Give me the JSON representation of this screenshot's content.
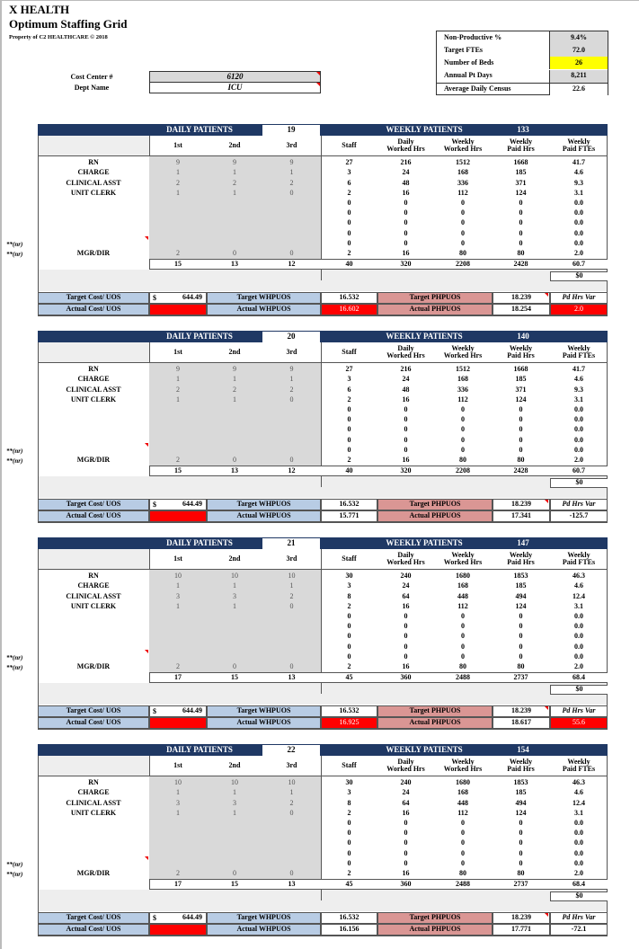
{
  "header": {
    "org": "X HEALTH",
    "title": "Optimum Staffing Grid",
    "property": "Property of C2 HEALTHCARE © 2018",
    "cost_center_label": "Cost Center #",
    "cost_center": "6120",
    "dept_name_label": "Dept Name",
    "dept_name": "ICU"
  },
  "summary": [
    {
      "label": "Non-Productive %",
      "value": "9.4%"
    },
    {
      "label": "Target FTEs",
      "value": "72.0"
    },
    {
      "label": "Number of Beds",
      "value": "26",
      "highlight": "#ffff00"
    },
    {
      "label": "Annual Pt Days",
      "value": "8,211"
    },
    {
      "label": "Average Daily Census",
      "value": "22.6"
    }
  ],
  "labels": {
    "daily_patients": "DAILY PATIENTS",
    "weekly_patients": "WEEKLY PATIENTS",
    "shifts": [
      "1st",
      "2nd",
      "3rd"
    ],
    "columns": [
      "Staff",
      "Daily\nWorked Hrs",
      "Weekly\nWorked Hrs",
      "Weekly\nPaid Hrs",
      "Weekly\nPaid FTEs"
    ],
    "roles": [
      "RN",
      "CHARGE",
      "CLINICAL ASST",
      "UNIT CLERK",
      "",
      "",
      "",
      "",
      "",
      "MGR/DIR"
    ],
    "nr_marker": "**(nr)",
    "target_cost": "Target Cost/ UOS",
    "actual_cost": "Actual Cost/ UOS",
    "target_whpuos": "Target WHPUOS",
    "actual_whpuos": "Actual WHPUOS",
    "target_phpuos": "Target PHPUOS",
    "actual_phpuos": "Actual PHPUOS",
    "pd_hrs_var": "Pd Hrs Var",
    "currency": "$"
  },
  "colors": {
    "navy": "#1f3864",
    "blue_label": "#b8cce4",
    "pink_label": "#da9694",
    "alert": "#ff0000",
    "shift_gray": "#d9d9d9",
    "highlight": "#ffff00"
  },
  "blocks": [
    {
      "daily_patients": "19",
      "weekly_patients": "133",
      "shifts": [
        [
          "9",
          "9",
          "9"
        ],
        [
          "1",
          "1",
          "1"
        ],
        [
          "2",
          "2",
          "2"
        ],
        [
          "1",
          "1",
          "0"
        ],
        [
          "",
          "",
          ""
        ],
        [
          "",
          "",
          ""
        ],
        [
          "",
          "",
          ""
        ],
        [
          "",
          "",
          ""
        ],
        [
          "",
          "",
          ""
        ],
        [
          "2",
          "0",
          "0"
        ]
      ],
      "rows": [
        [
          "27",
          "216",
          "1512",
          "1668",
          "41.7"
        ],
        [
          "3",
          "24",
          "168",
          "185",
          "4.6"
        ],
        [
          "6",
          "48",
          "336",
          "371",
          "9.3"
        ],
        [
          "2",
          "16",
          "112",
          "124",
          "3.1"
        ],
        [
          "0",
          "0",
          "0",
          "0",
          "0.0"
        ],
        [
          "0",
          "0",
          "0",
          "0",
          "0.0"
        ],
        [
          "0",
          "0",
          "0",
          "0",
          "0.0"
        ],
        [
          "0",
          "0",
          "0",
          "0",
          "0.0"
        ],
        [
          "0",
          "0",
          "0",
          "0",
          "0.0"
        ],
        [
          "2",
          "16",
          "80",
          "80",
          "2.0"
        ]
      ],
      "totals": [
        "15",
        "13",
        "12",
        "40",
        "320",
        "2208",
        "2428",
        "60.7"
      ],
      "dollars": "$0",
      "target_cost": "644.49",
      "target_whpuos": "16.532",
      "actual_whpuos": "16.602",
      "actual_whpuos_alert": true,
      "target_phpuos": "18.239",
      "actual_phpuos": "18.254",
      "pd_hrs_var": "2.0",
      "pd_hrs_var_alert": true
    },
    {
      "daily_patients": "20",
      "weekly_patients": "140",
      "shifts": [
        [
          "9",
          "9",
          "9"
        ],
        [
          "1",
          "1",
          "1"
        ],
        [
          "2",
          "2",
          "2"
        ],
        [
          "1",
          "1",
          "0"
        ],
        [
          "",
          "",
          ""
        ],
        [
          "",
          "",
          ""
        ],
        [
          "",
          "",
          ""
        ],
        [
          "",
          "",
          ""
        ],
        [
          "",
          "",
          ""
        ],
        [
          "2",
          "0",
          "0"
        ]
      ],
      "rows": [
        [
          "27",
          "216",
          "1512",
          "1668",
          "41.7"
        ],
        [
          "3",
          "24",
          "168",
          "185",
          "4.6"
        ],
        [
          "6",
          "48",
          "336",
          "371",
          "9.3"
        ],
        [
          "2",
          "16",
          "112",
          "124",
          "3.1"
        ],
        [
          "0",
          "0",
          "0",
          "0",
          "0.0"
        ],
        [
          "0",
          "0",
          "0",
          "0",
          "0.0"
        ],
        [
          "0",
          "0",
          "0",
          "0",
          "0.0"
        ],
        [
          "0",
          "0",
          "0",
          "0",
          "0.0"
        ],
        [
          "0",
          "0",
          "0",
          "0",
          "0.0"
        ],
        [
          "2",
          "16",
          "80",
          "80",
          "2.0"
        ]
      ],
      "totals": [
        "15",
        "13",
        "12",
        "40",
        "320",
        "2208",
        "2428",
        "60.7"
      ],
      "dollars": "$0",
      "target_cost": "644.49",
      "target_whpuos": "16.532",
      "actual_whpuos": "15.771",
      "actual_whpuos_alert": false,
      "target_phpuos": "18.239",
      "actual_phpuos": "17.341",
      "pd_hrs_var": "-125.7",
      "pd_hrs_var_alert": false
    },
    {
      "daily_patients": "21",
      "weekly_patients": "147",
      "shifts": [
        [
          "10",
          "10",
          "10"
        ],
        [
          "1",
          "1",
          "1"
        ],
        [
          "3",
          "3",
          "2"
        ],
        [
          "1",
          "1",
          "0"
        ],
        [
          "",
          "",
          ""
        ],
        [
          "",
          "",
          ""
        ],
        [
          "",
          "",
          ""
        ],
        [
          "",
          "",
          ""
        ],
        [
          "",
          "",
          ""
        ],
        [
          "2",
          "0",
          "0"
        ]
      ],
      "rows": [
        [
          "30",
          "240",
          "1680",
          "1853",
          "46.3"
        ],
        [
          "3",
          "24",
          "168",
          "185",
          "4.6"
        ],
        [
          "8",
          "64",
          "448",
          "494",
          "12.4"
        ],
        [
          "2",
          "16",
          "112",
          "124",
          "3.1"
        ],
        [
          "0",
          "0",
          "0",
          "0",
          "0.0"
        ],
        [
          "0",
          "0",
          "0",
          "0",
          "0.0"
        ],
        [
          "0",
          "0",
          "0",
          "0",
          "0.0"
        ],
        [
          "0",
          "0",
          "0",
          "0",
          "0.0"
        ],
        [
          "0",
          "0",
          "0",
          "0",
          "0.0"
        ],
        [
          "2",
          "16",
          "80",
          "80",
          "2.0"
        ]
      ],
      "totals": [
        "17",
        "15",
        "13",
        "45",
        "360",
        "2488",
        "2737",
        "68.4"
      ],
      "dollars": "$0",
      "target_cost": "644.49",
      "target_whpuos": "16.532",
      "actual_whpuos": "16.925",
      "actual_whpuos_alert": true,
      "target_phpuos": "18.239",
      "actual_phpuos": "18.617",
      "pd_hrs_var": "55.6",
      "pd_hrs_var_alert": true
    },
    {
      "daily_patients": "22",
      "weekly_patients": "154",
      "shifts": [
        [
          "10",
          "10",
          "10"
        ],
        [
          "1",
          "1",
          "1"
        ],
        [
          "3",
          "3",
          "2"
        ],
        [
          "1",
          "1",
          "0"
        ],
        [
          "",
          "",
          ""
        ],
        [
          "",
          "",
          ""
        ],
        [
          "",
          "",
          ""
        ],
        [
          "",
          "",
          ""
        ],
        [
          "",
          "",
          ""
        ],
        [
          "2",
          "0",
          "0"
        ]
      ],
      "rows": [
        [
          "30",
          "240",
          "1680",
          "1853",
          "46.3"
        ],
        [
          "3",
          "24",
          "168",
          "185",
          "4.6"
        ],
        [
          "8",
          "64",
          "448",
          "494",
          "12.4"
        ],
        [
          "2",
          "16",
          "112",
          "124",
          "3.1"
        ],
        [
          "0",
          "0",
          "0",
          "0",
          "0.0"
        ],
        [
          "0",
          "0",
          "0",
          "0",
          "0.0"
        ],
        [
          "0",
          "0",
          "0",
          "0",
          "0.0"
        ],
        [
          "0",
          "0",
          "0",
          "0",
          "0.0"
        ],
        [
          "0",
          "0",
          "0",
          "0",
          "0.0"
        ],
        [
          "2",
          "16",
          "80",
          "80",
          "2.0"
        ]
      ],
      "totals": [
        "17",
        "15",
        "13",
        "45",
        "360",
        "2488",
        "2737",
        "68.4"
      ],
      "dollars": "$0",
      "target_cost": "644.49",
      "target_whpuos": "16.532",
      "actual_whpuos": "16.156",
      "actual_whpuos_alert": false,
      "target_phpuos": "18.239",
      "actual_phpuos": "17.771",
      "pd_hrs_var": "-72.1",
      "pd_hrs_var_alert": false
    }
  ]
}
